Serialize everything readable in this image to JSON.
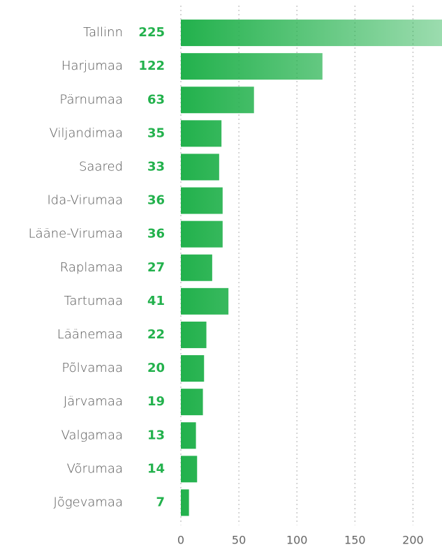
{
  "chart_data": {
    "type": "bar",
    "orientation": "horizontal",
    "categories": [
      "Tallinn",
      "Harjumaa",
      "Pärnumaa",
      "Viljandimaa",
      "Saared",
      "Ida-Virumaa",
      "Lääne-Virumaa",
      "Raplamaa",
      "Tartumaa",
      "Läänemaa",
      "Põlvamaa",
      "Järvamaa",
      "Valgamaa",
      "Võrumaa",
      "Jõgevamaa"
    ],
    "values": [
      225,
      122,
      63,
      35,
      33,
      36,
      36,
      27,
      41,
      22,
      20,
      19,
      13,
      14,
      7
    ],
    "color": "#22b14c",
    "xlim": [
      0,
      225
    ],
    "xticks": [
      0,
      50,
      100,
      150,
      200
    ],
    "grid": true
  }
}
